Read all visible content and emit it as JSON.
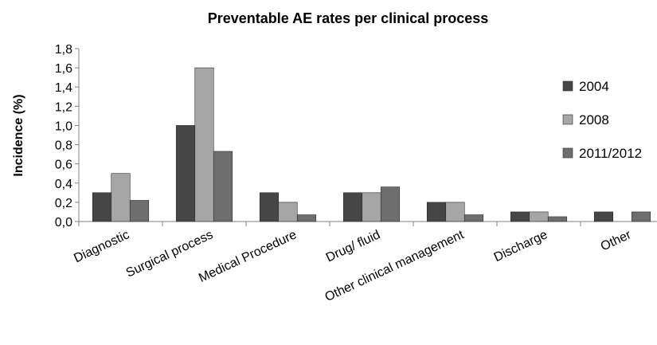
{
  "chart_data": {
    "type": "bar",
    "title": "Preventable AE rates per clinical process",
    "ylabel": "Incidence (%)",
    "xlabel": "",
    "ylim": [
      0,
      1.8
    ],
    "yticks": [
      "0,0",
      "0,2",
      "0,4",
      "0,6",
      "0,8",
      "1,0",
      "1,2",
      "1,4",
      "1,6",
      "1,8"
    ],
    "grid": false,
    "legend_position": "right",
    "categories": [
      "Diagnostic",
      "Surgical process",
      "Medical Procedure",
      "Drug/ fluid",
      "Other clinical management",
      "Discharge",
      "Other"
    ],
    "series": [
      {
        "name": "2004",
        "color": "#464646",
        "values": [
          0.3,
          1.0,
          0.3,
          0.3,
          0.2,
          0.1,
          0.1
        ]
      },
      {
        "name": "2008",
        "color": "#a6a6a6",
        "values": [
          0.5,
          1.6,
          0.2,
          0.3,
          0.2,
          0.1,
          0.0
        ]
      },
      {
        "name": "2011/2012",
        "color": "#6e6e6e",
        "values": [
          0.22,
          0.73,
          0.07,
          0.36,
          0.07,
          0.05,
          0.1
        ]
      }
    ]
  }
}
